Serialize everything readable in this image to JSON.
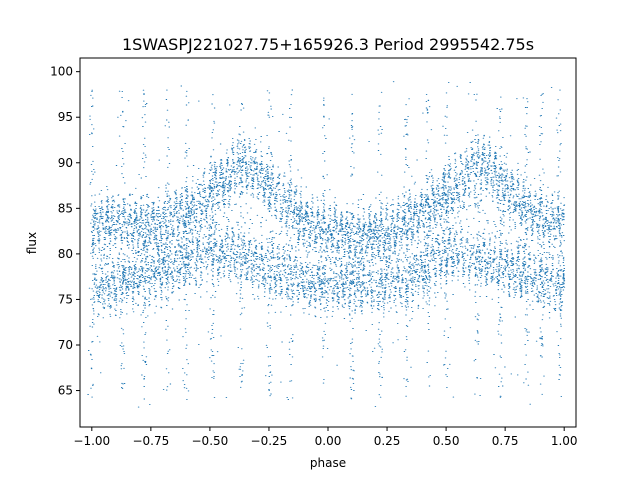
{
  "chart_data": {
    "type": "scatter",
    "title": "1SWASPJ221027.75+165926.3 Period 2995542.75s",
    "xlabel": "phase",
    "ylabel": "flux",
    "xlim": [
      -1.05,
      1.05
    ],
    "ylim": [
      61.0,
      101.5
    ],
    "x_ticks": [
      -1.0,
      -0.75,
      -0.5,
      -0.25,
      0.0,
      0.25,
      0.5,
      0.75,
      1.0
    ],
    "x_tick_labels": [
      "−1.00",
      "−0.75",
      "−0.50",
      "−0.25",
      "0.00",
      "0.25",
      "0.50",
      "0.75",
      "1.00"
    ],
    "y_ticks": [
      65,
      70,
      75,
      80,
      85,
      90,
      95,
      100
    ],
    "y_tick_labels": [
      "65",
      "70",
      "75",
      "80",
      "85",
      "90",
      "95",
      "100"
    ],
    "grid": false,
    "legend": "none",
    "marker_color": "#1f77b4",
    "folded_curve": {
      "description_of_points": "phase-folded light curve, mirrored for phase -1..1",
      "phase": [
        -1.0,
        -0.9,
        -0.8,
        -0.7,
        -0.6,
        -0.5,
        -0.4,
        -0.35,
        -0.3,
        -0.2,
        -0.1,
        0.0,
        0.1,
        0.2,
        0.3,
        0.4,
        0.5,
        0.6,
        0.65,
        0.7,
        0.8,
        0.9,
        1.0
      ],
      "upper_flux": [
        83,
        83.5,
        83,
        83.5,
        84.5,
        86.5,
        89,
        90,
        89,
        86,
        83.5,
        82.5,
        82,
        82,
        83,
        84.5,
        86.5,
        89,
        90,
        89,
        86,
        84,
        83
      ],
      "lower_flux": [
        76,
        77,
        77.5,
        78,
        79,
        80.5,
        80,
        79.5,
        79,
        78,
        77,
        76.5,
        76.5,
        76.5,
        77,
        78,
        80.5,
        80,
        79.5,
        79,
        78,
        77,
        76
      ]
    }
  }
}
